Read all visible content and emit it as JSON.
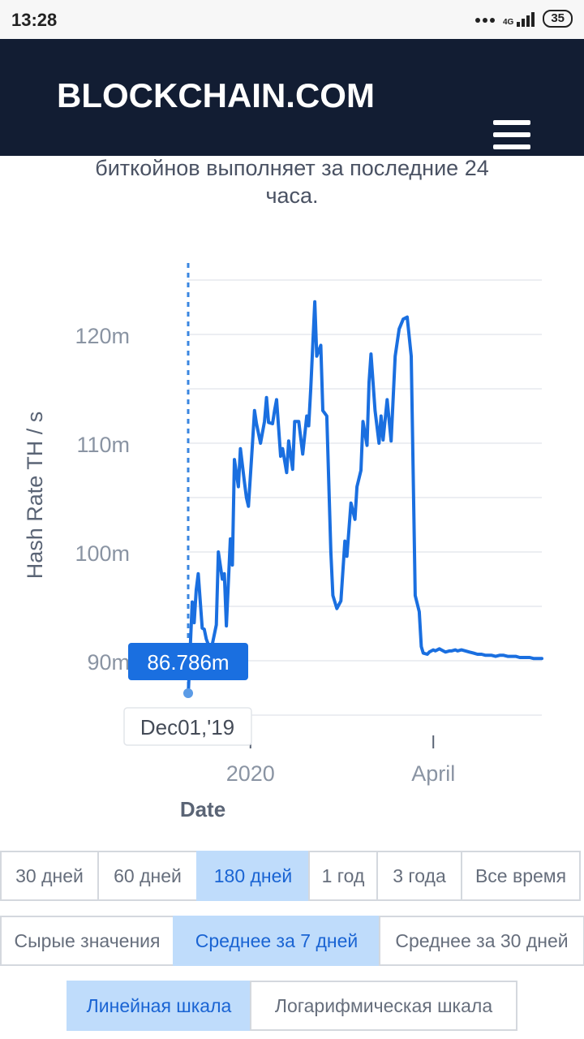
{
  "status_bar": {
    "time": "13:28",
    "network": "4G",
    "battery": "35"
  },
  "navbar": {
    "logo": "BLOCKCHAIN.COM",
    "menu_icon": "hamburger-menu-icon"
  },
  "description": {
    "line1": "биткойнов выполняет за последние 24",
    "line2": "часа."
  },
  "chart_data": {
    "type": "line",
    "ylabel": "Hash Rate TH / s",
    "xlabel": "Date",
    "ylim": [
      85,
      125
    ],
    "y_ticks": [
      90,
      100,
      110,
      120
    ],
    "y_tick_labels": [
      "90m",
      "100m",
      "110m",
      "120m"
    ],
    "x_tick_labels": [
      "2020",
      "April"
    ],
    "x_tick_dates": [
      "2020-01-01",
      "2020-04-01"
    ],
    "x_range": [
      "2019-12-01",
      "2020-05-25"
    ],
    "line_color": "#1a6fe0",
    "tooltip": {
      "value": "86.786m",
      "date": "Dec01,'19"
    },
    "series": [
      {
        "x": [
          "2019-12-01",
          "2019-12-03",
          "2019-12-04",
          "2019-12-05",
          "2019-12-06",
          "2019-12-08",
          "2019-12-09",
          "2019-12-10",
          "2019-12-12",
          "2019-12-13",
          "2019-12-15",
          "2019-12-16",
          "2019-12-18",
          "2019-12-19",
          "2019-12-20",
          "2019-12-22",
          "2019-12-23",
          "2019-12-24",
          "2019-12-26",
          "2019-12-27",
          "2019-12-29",
          "2019-12-30",
          "2019-12-31",
          "2020-01-02",
          "2020-01-03",
          "2020-01-04",
          "2020-01-06",
          "2020-01-08",
          "2020-01-09",
          "2020-01-10",
          "2020-01-12",
          "2020-01-13",
          "2020-01-14",
          "2020-01-16",
          "2020-01-17",
          "2020-01-19",
          "2020-01-20",
          "2020-01-22",
          "2020-01-23",
          "2020-01-25",
          "2020-01-27",
          "2020-01-29",
          "2020-01-30",
          "2020-01-31",
          "2020-02-02",
          "2020-02-03",
          "2020-02-05",
          "2020-02-06",
          "2020-02-08",
          "2020-02-10",
          "2020-02-11",
          "2020-02-13",
          "2020-02-15",
          "2020-02-17",
          "2020-02-18",
          "2020-02-20",
          "2020-02-22",
          "2020-02-23",
          "2020-02-25",
          "2020-02-26",
          "2020-02-28",
          "2020-02-29",
          "2020-03-01",
          "2020-03-03",
          "2020-03-05",
          "2020-03-06",
          "2020-03-07",
          "2020-03-09",
          "2020-03-11",
          "2020-03-13",
          "2020-03-15",
          "2020-03-17",
          "2020-03-19",
          "2020-03-21",
          "2020-03-23",
          "2020-03-25",
          "2020-03-26",
          "2020-03-27",
          "2020-03-29",
          "2020-03-30",
          "2020-04-01",
          "2020-04-02",
          "2020-04-04",
          "2020-04-05",
          "2020-04-07",
          "2020-04-09",
          "2020-04-10",
          "2020-04-12",
          "2020-04-13",
          "2020-04-15",
          "2020-04-17",
          "2020-04-19",
          "2020-04-21",
          "2020-04-23",
          "2020-04-25",
          "2020-04-27",
          "2020-04-29",
          "2020-04-30",
          "2020-05-02",
          "2020-05-04",
          "2020-05-06",
          "2020-05-08",
          "2020-05-10",
          "2020-05-12",
          "2020-05-14",
          "2020-05-16",
          "2020-05-17",
          "2020-05-19",
          "2020-05-21",
          "2020-05-22",
          "2020-05-24",
          "2020-05-25"
        ],
        "y": [
          86.8,
          95.4,
          93.5,
          96.5,
          98.0,
          93.0,
          92.9,
          92.0,
          91.0,
          91.5,
          93.3,
          100.0,
          97.5,
          98.0,
          93.2,
          101.2,
          98.8,
          108.5,
          106.0,
          109.5,
          106.4,
          105.0,
          104.2,
          110.0,
          113.0,
          111.8,
          110.0,
          112.0,
          114.2,
          111.9,
          111.8,
          113.0,
          114.0,
          108.8,
          109.5,
          107.3,
          110.2,
          107.6,
          112.0,
          112.0,
          109.0,
          112.5,
          111.6,
          115.0,
          123.0,
          118.0,
          119.0,
          113.0,
          112.5,
          100.0,
          96.0,
          94.8,
          95.5,
          101.0,
          99.6,
          104.5,
          103.0,
          106.0,
          107.5,
          112.0,
          109.8,
          115.6,
          118.2,
          113.0,
          110.0,
          112.5,
          110.3,
          114.0,
          110.2,
          118.0,
          120.5,
          121.4,
          121.6,
          118.0,
          96.0,
          94.5,
          91.3,
          90.7,
          90.6,
          90.8,
          91.0,
          90.9,
          91.1,
          91.0,
          90.8,
          90.9,
          90.9,
          91.0,
          90.9,
          91.0,
          90.9,
          90.8,
          90.7,
          90.6,
          90.6,
          90.5,
          90.5,
          90.5,
          90.4,
          90.5,
          90.5,
          90.4,
          90.4,
          90.4,
          90.3,
          90.3,
          90.3,
          90.3,
          90.2,
          90.2,
          90.2,
          90.2
        ]
      }
    ]
  },
  "range_buttons": {
    "items": [
      "30 дней",
      "60 дней",
      "180 дней",
      "1 год",
      "3 года",
      "Все время"
    ],
    "active_index": 2
  },
  "avg_buttons": {
    "items": [
      "Сырые значения",
      "Среднее за 7 дней",
      "Среднее за 30 дней"
    ],
    "active_index": 1
  },
  "scale_buttons": {
    "items": [
      "Линейная шкала",
      "Логарифмическая шкала"
    ],
    "active_index": 0
  },
  "colors": {
    "navbar_bg": "#121d33",
    "accent": "#1a6fe0",
    "active_button_bg": "#bfdcfb"
  }
}
